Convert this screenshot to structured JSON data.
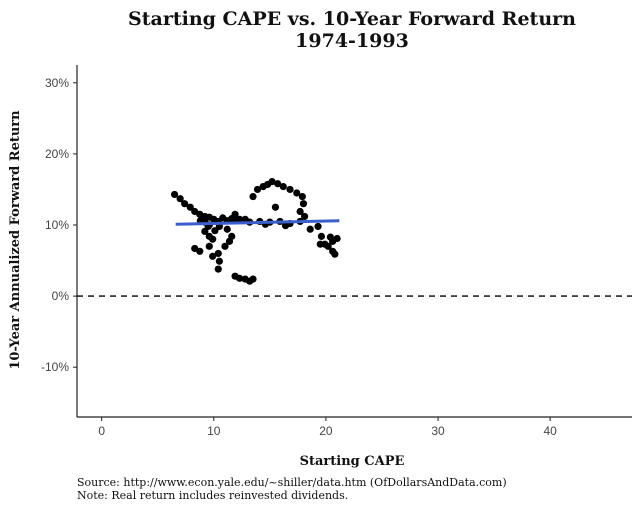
{
  "chart_data": {
    "type": "scatter",
    "title": "Starting CAPE vs. 10-Year Forward Return",
    "subtitle": "1974-1993",
    "xlabel": "Starting CAPE",
    "ylabel": "10-Year Annualized Forward Return",
    "xlim": [
      -2.2,
      47.3
    ],
    "ylim": [
      -17,
      32.5
    ],
    "xticks": [
      0,
      10,
      20,
      30,
      40
    ],
    "xtick_labels": [
      "0",
      "10",
      "20",
      "30",
      "40"
    ],
    "yticks": [
      30,
      20,
      10,
      0,
      -10
    ],
    "ytick_labels": [
      "30%",
      "20%",
      "10%",
      "0%",
      "-10%"
    ],
    "grid": false,
    "reference_line": {
      "y": 0,
      "style": "dashed"
    },
    "points": [
      [
        6.5,
        14.3
      ],
      [
        7.0,
        13.7
      ],
      [
        7.4,
        13.0
      ],
      [
        7.9,
        12.5
      ],
      [
        8.3,
        11.9
      ],
      [
        8.75,
        11.5
      ],
      [
        9.2,
        11.2
      ],
      [
        9.6,
        11.1
      ],
      [
        8.8,
        10.6
      ],
      [
        9.2,
        10.4
      ],
      [
        9.6,
        10.0
      ],
      [
        10.0,
        10.8
      ],
      [
        10.4,
        10.5
      ],
      [
        10.8,
        11.0
      ],
      [
        11.2,
        10.6
      ],
      [
        11.6,
        10.9
      ],
      [
        12.0,
        10.6
      ],
      [
        9.2,
        9.1
      ],
      [
        9.6,
        8.4
      ],
      [
        9.5,
        9.8
      ],
      [
        10.5,
        9.8
      ],
      [
        12.3,
        10.8
      ],
      [
        11.9,
        11.5
      ],
      [
        10.1,
        9.2
      ],
      [
        9.9,
        8.0
      ],
      [
        8.3,
        6.7
      ],
      [
        8.75,
        6.3
      ],
      [
        9.6,
        7.0
      ],
      [
        9.9,
        5.6
      ],
      [
        10.4,
        6.0
      ],
      [
        10.5,
        4.9
      ],
      [
        10.4,
        3.8
      ],
      [
        11.0,
        7.0
      ],
      [
        11.4,
        7.7
      ],
      [
        11.6,
        8.4
      ],
      [
        11.2,
        9.4
      ],
      [
        11.9,
        2.8
      ],
      [
        12.3,
        2.5
      ],
      [
        12.8,
        2.4
      ],
      [
        13.2,
        2.1
      ],
      [
        13.5,
        2.4
      ],
      [
        13.5,
        14.0
      ],
      [
        13.9,
        15.0
      ],
      [
        14.4,
        15.4
      ],
      [
        14.8,
        15.7
      ],
      [
        15.2,
        16.1
      ],
      [
        15.7,
        15.8
      ],
      [
        16.2,
        15.4
      ],
      [
        16.8,
        15.0
      ],
      [
        17.4,
        14.5
      ],
      [
        17.9,
        14.0
      ],
      [
        18.0,
        13.0
      ],
      [
        17.7,
        11.9
      ],
      [
        15.5,
        12.5
      ],
      [
        13.2,
        10.4
      ],
      [
        14.1,
        10.5
      ],
      [
        15.0,
        10.4
      ],
      [
        15.9,
        10.5
      ],
      [
        16.8,
        10.2
      ],
      [
        17.7,
        10.5
      ],
      [
        18.1,
        11.2
      ],
      [
        18.6,
        9.4
      ],
      [
        19.3,
        9.8
      ],
      [
        19.6,
        8.4
      ],
      [
        19.9,
        7.3
      ],
      [
        19.5,
        7.3
      ],
      [
        20.2,
        7.0
      ],
      [
        20.6,
        7.7
      ],
      [
        21.0,
        8.1
      ],
      [
        20.6,
        6.3
      ],
      [
        20.8,
        5.9
      ],
      [
        20.4,
        8.3
      ],
      [
        12.8,
        10.8
      ],
      [
        14.6,
        10.1
      ],
      [
        16.4,
        9.9
      ]
    ],
    "trend_line": {
      "x": [
        6.6,
        21.2
      ],
      "y": [
        10.1,
        10.6
      ],
      "color": "#3a5fcd"
    },
    "point_color": "#000000"
  },
  "footer": {
    "source": "Source:  http://www.econ.yale.edu/~shiller/data.htm (OfDollarsAndData.com)",
    "note": "Note:  Real return includes reinvested dividends."
  }
}
